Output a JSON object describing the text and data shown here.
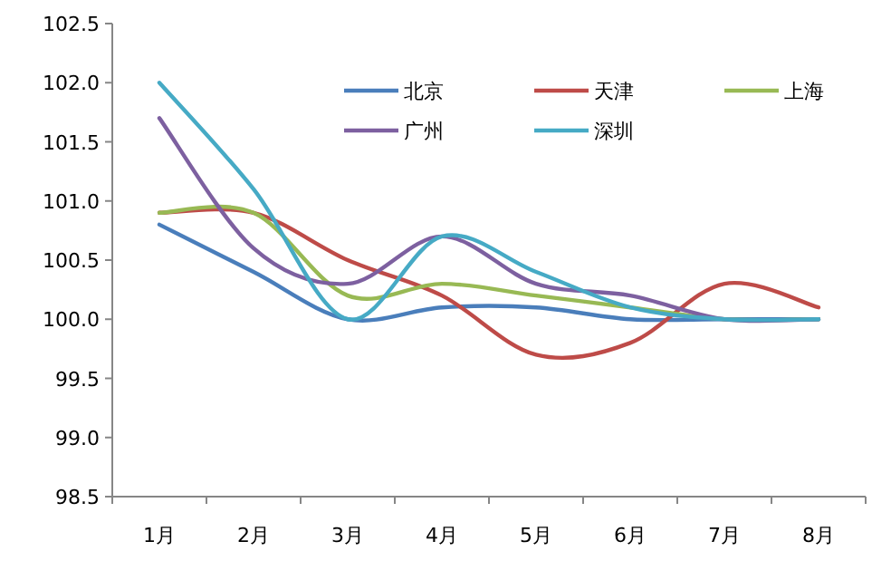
{
  "chart_data": {
    "type": "line",
    "categories": [
      "1月",
      "2月",
      "3月",
      "4月",
      "5月",
      "6月",
      "7月",
      "8月"
    ],
    "series": [
      {
        "name": "北京",
        "color": "#4a7ebb",
        "values": [
          100.8,
          100.4,
          100.0,
          100.1,
          100.1,
          100.0,
          100.0,
          100.0
        ]
      },
      {
        "name": "天津",
        "color": "#be4b48",
        "values": [
          100.9,
          100.9,
          100.5,
          100.2,
          99.7,
          99.8,
          100.3,
          100.1
        ]
      },
      {
        "name": "上海",
        "color": "#98b954",
        "values": [
          100.9,
          100.9,
          100.2,
          100.3,
          100.2,
          100.1,
          100.0,
          100.0
        ]
      },
      {
        "name": "广州",
        "color": "#7d60a0",
        "values": [
          101.7,
          100.6,
          100.3,
          100.7,
          100.3,
          100.2,
          100.0,
          100.0
        ]
      },
      {
        "name": "深圳",
        "color": "#46aac5",
        "values": [
          102.0,
          101.1,
          100.0,
          100.7,
          100.4,
          100.1,
          100.0,
          100.0
        ]
      }
    ],
    "ylim": [
      98.5,
      102.5
    ],
    "yticks": [
      98.5,
      {
        "value": 99,
        "label": "99.0"
      },
      99.5,
      {
        "value": 100,
        "label": "100.0"
      },
      100.5,
      {
        "value": 101,
        "label": "101.0"
      },
      101.5,
      {
        "value": 102,
        "label": "102.0"
      },
      102.5
    ],
    "grid": false,
    "legend": "top",
    "marker": "none",
    "line_style": "solid"
  }
}
